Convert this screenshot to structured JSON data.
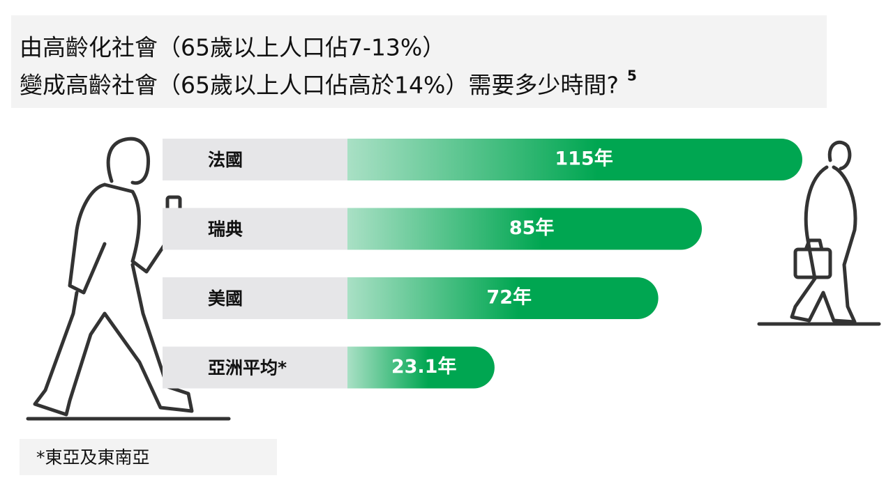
{
  "chart_data": {
    "type": "bar",
    "title": [
      "由高齡化社會（65歲以上人口佔7-13%）",
      "變成高齡社會（65歲以上人口佔高於14%）需要多少時間?"
    ],
    "title_note": "5",
    "categories": [
      "法國",
      "瑞典",
      "美國",
      "亞洲平均*"
    ],
    "values": [
      115,
      85,
      72,
      23.1
    ],
    "value_labels": [
      "115年",
      "85年",
      "72年",
      "23.1年"
    ],
    "color": "#00a651",
    "color_start": "#a9e0c5",
    "footnote": "*東亞及東南亞"
  }
}
